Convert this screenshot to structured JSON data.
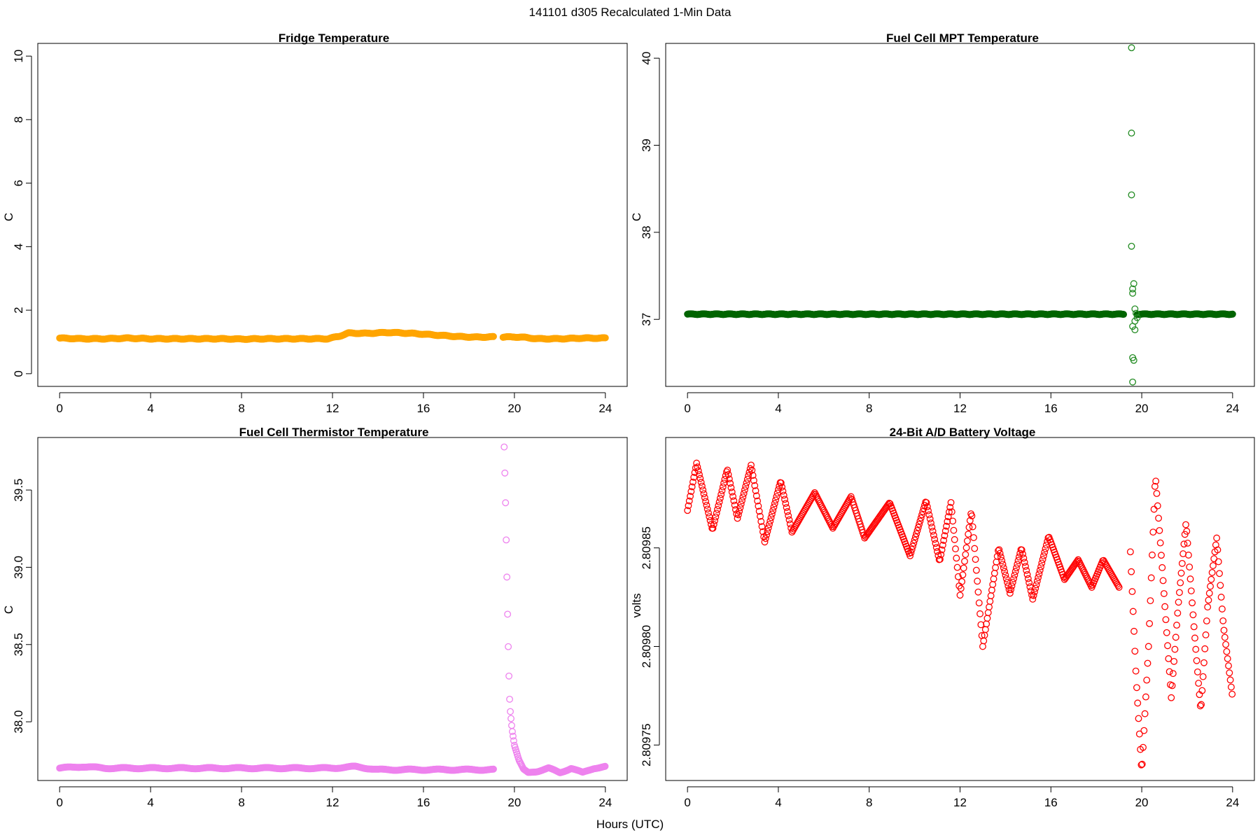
{
  "figure": {
    "suptitle": "141101   d305   Recalculated 1-Min Data",
    "xlabel": "Hours (UTC)"
  },
  "chart_data": [
    {
      "type": "scatter",
      "title": "Fridge Temperature",
      "ylabel": "C",
      "xlim": [
        -0.96,
        24.96
      ],
      "ylim": [
        -0.4,
        10.4
      ],
      "xticks": [
        0,
        4,
        8,
        12,
        16,
        20,
        24
      ],
      "yticks": [
        0,
        2,
        4,
        6,
        8,
        10
      ],
      "ytick_labels": [
        "0",
        "2",
        "4",
        "6",
        "8",
        "10"
      ],
      "color": "#FFA500",
      "series": [
        {
          "segments": [
            {
              "x": [
                0,
                1,
                2,
                3,
                4,
                5,
                6,
                7,
                8,
                9,
                10,
                11,
                11.8,
                12.3,
                12.7,
                13.5,
                14.5,
                15.5,
                16.5,
                17.5,
                18.3,
                19.1
              ],
              "y": [
                1.12,
                1.1,
                1.1,
                1.12,
                1.1,
                1.1,
                1.1,
                1.1,
                1.09,
                1.1,
                1.1,
                1.1,
                1.1,
                1.18,
                1.28,
                1.27,
                1.3,
                1.27,
                1.22,
                1.17,
                1.15,
                1.16
              ]
            },
            {
              "x": [
                19.5,
                20,
                20.5,
                21,
                22,
                23,
                24
              ],
              "y": [
                1.15,
                1.16,
                1.14,
                1.1,
                1.1,
                1.12,
                1.12
              ]
            }
          ]
        }
      ]
    },
    {
      "type": "scatter",
      "title": "Fuel Cell MPT Temperature",
      "ylabel": "C",
      "xlim": [
        -0.96,
        24.96
      ],
      "ylim": [
        36.23,
        40.17
      ],
      "xticks": [
        0,
        4,
        8,
        12,
        16,
        20,
        24
      ],
      "yticks": [
        37,
        38,
        39,
        40
      ],
      "ytick_labels": [
        "37",
        "38",
        "39",
        "40"
      ],
      "color": "#006400",
      "color_light": "#228B22",
      "series": [
        {
          "segments": [
            {
              "x": [
                0,
                2,
                4,
                6,
                8,
                10,
                12,
                14,
                16,
                18,
                19.2
              ],
              "y": [
                37.06,
                37.06,
                37.06,
                37.06,
                37.06,
                37.06,
                37.06,
                37.06,
                37.06,
                37.06,
                37.06
              ]
            },
            {
              "x": [
                19.8,
                21,
                22,
                23,
                24
              ],
              "y": [
                37.06,
                37.06,
                37.06,
                37.06,
                37.06
              ]
            }
          ],
          "outliers": {
            "x": [
              19.55,
              19.55,
              19.55,
              19.55,
              19.6,
              19.65,
              19.6,
              19.7,
              19.75,
              19.6,
              19.7,
              19.6,
              19.65,
              19.7,
              19.8,
              19.6
            ],
            "y": [
              40.12,
              39.14,
              38.43,
              37.84,
              37.35,
              37.41,
              37.3,
              37.12,
              37.07,
              36.92,
              36.98,
              36.56,
              36.53,
              36.88,
              37.02,
              36.28
            ]
          }
        }
      ]
    },
    {
      "type": "scatter",
      "title": "Fuel Cell Thermistor Temperature",
      "ylabel": "C",
      "xlim": [
        -0.96,
        24.96
      ],
      "ylim": [
        37.62,
        39.84
      ],
      "xticks": [
        0,
        4,
        8,
        12,
        16,
        20,
        24
      ],
      "yticks": [
        38.0,
        38.5,
        39.0,
        39.5
      ],
      "ytick_labels": [
        "38.0",
        "38.5",
        "39.0",
        "39.5"
      ],
      "color": "#EE82EE",
      "series": [
        {
          "segments": [
            {
              "x": [
                0,
                1,
                2,
                3,
                4,
                5,
                6,
                7,
                8,
                9,
                10,
                11,
                12,
                13,
                14,
                15,
                16,
                17,
                18,
                19.1
              ],
              "y": [
                37.7,
                37.71,
                37.7,
                37.7,
                37.7,
                37.7,
                37.7,
                37.7,
                37.7,
                37.7,
                37.7,
                37.7,
                37.7,
                37.71,
                37.69,
                37.69,
                37.69,
                37.69,
                37.69,
                37.69
              ]
            },
            {
              "x": [
                19.55,
                19.6,
                19.65,
                19.7,
                19.75,
                19.8,
                19.9,
                20.0,
                20.2,
                20.4,
                20.6,
                21,
                21.5,
                22,
                22.5,
                23,
                23.5,
                24
              ],
              "y": [
                39.78,
                39.5,
                39.1,
                38.7,
                38.35,
                38.1,
                37.95,
                37.85,
                37.75,
                37.69,
                37.67,
                37.68,
                37.7,
                37.67,
                37.7,
                37.67,
                37.7,
                37.71
              ]
            }
          ]
        }
      ]
    },
    {
      "type": "scatter",
      "title": "24-Bit A/D Battery Voltage",
      "ylabel": "volts",
      "xlim": [
        -0.96,
        24.96
      ],
      "ylim": [
        2.809732,
        2.809906
      ],
      "xticks": [
        0,
        4,
        8,
        12,
        16,
        20,
        24
      ],
      "yticks": [
        2.80975,
        2.8098,
        2.80985
      ],
      "ytick_labels": [
        "2.80975",
        "2.80980",
        "2.80985"
      ],
      "color": "#FF0000",
      "series": [
        {
          "segments": [
            {
              "x": [
                0,
                0.4,
                1.1,
                1.75,
                2.2,
                2.8,
                3.4,
                4.1,
                4.6,
                5.6,
                6.4,
                7.2,
                7.8,
                8.9,
                9.8,
                10.5,
                11.1,
                11.6,
                12.0,
                12.5,
                13.0,
                13.7,
                14.2,
                14.7,
                15.2,
                15.9,
                16.6,
                17.2,
                17.8,
                18.3,
                19.0
              ],
              "y": [
                2.809869,
                2.809893,
                2.809859,
                2.80989,
                2.809865,
                2.809892,
                2.809853,
                2.809884,
                2.809858,
                2.809878,
                2.80986,
                2.809876,
                2.809855,
                2.809873,
                2.809846,
                2.809874,
                2.809843,
                2.809873,
                2.809826,
                2.809869,
                2.8098,
                2.80985,
                2.809827,
                2.80985,
                2.809824,
                2.809856,
                2.809834,
                2.809844,
                2.80983,
                2.809844,
                2.80983
              ]
            },
            {
              "x": [
                19.5,
                19.75,
                20.0,
                20.3,
                20.6,
                20.9,
                21.3,
                21.6,
                21.95,
                22.3,
                22.6,
                22.9,
                23.3,
                23.6,
                24.0
              ],
              "y": [
                2.809848,
                2.809785,
                2.809736,
                2.8098,
                2.809887,
                2.80984,
                2.809774,
                2.80982,
                2.809863,
                2.80981,
                2.809767,
                2.80982,
                2.809855,
                2.80981,
                2.809774
              ]
            }
          ]
        }
      ]
    }
  ]
}
